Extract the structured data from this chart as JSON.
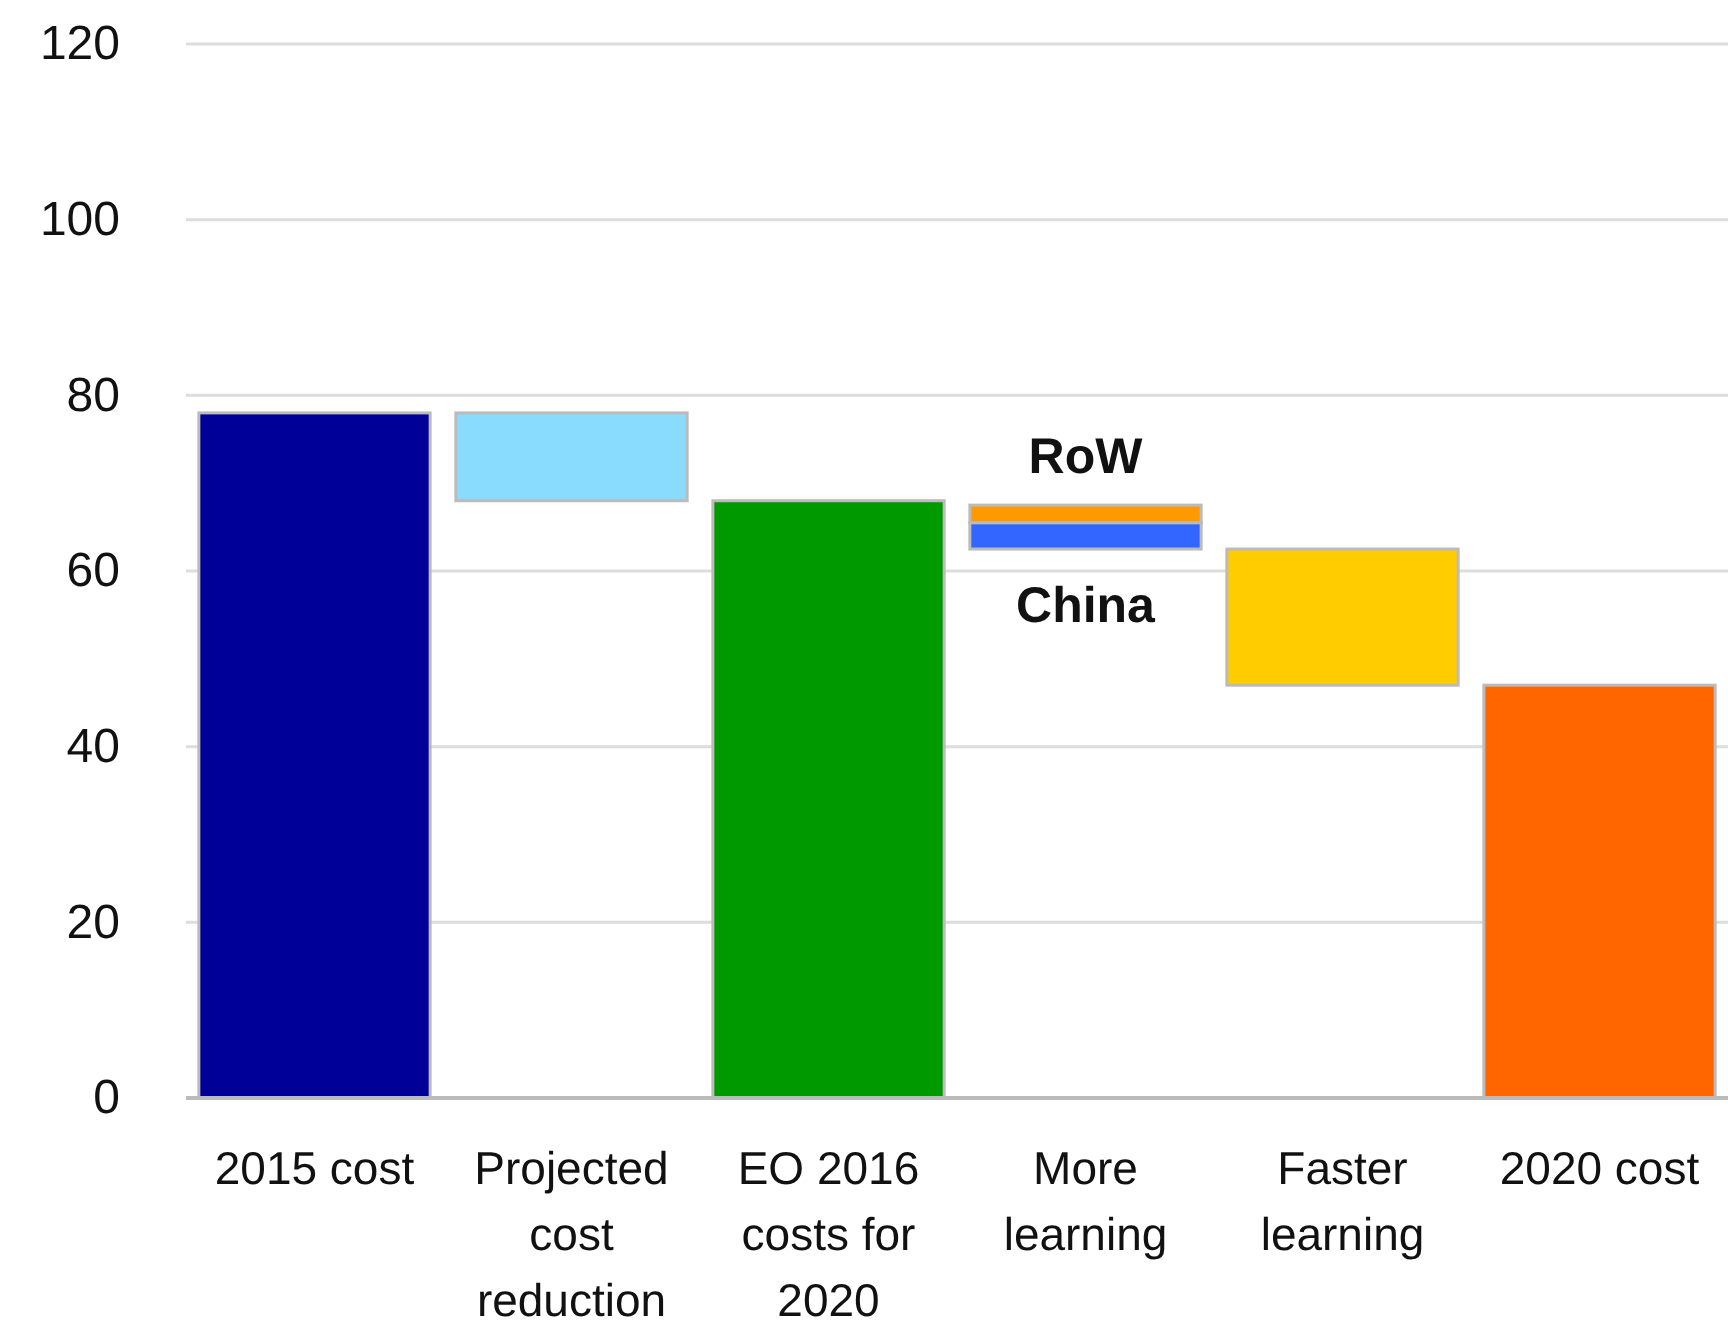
{
  "chart_data": {
    "type": "bar",
    "categories": [
      "2015 cost",
      "Projected cost reduction",
      "EO 2016 costs for 2020",
      "More learning",
      "Faster learning",
      "2020 cost"
    ],
    "series": [
      {
        "colors": [
          "#000099",
          "#8adcff",
          "#009900",
          null,
          "#ffcc00",
          "#ff6600"
        ],
        "values": [
          78,
          10,
          68,
          null,
          15.5,
          47
        ],
        "base": [
          0,
          68,
          0,
          null,
          47,
          0
        ]
      },
      {
        "name": "China",
        "color": "#3366ff",
        "values": [
          null,
          null,
          null,
          3,
          null,
          null
        ],
        "base": [
          null,
          null,
          null,
          62.5,
          null,
          null
        ]
      },
      {
        "name": "RoW",
        "color": "#ff9900",
        "values": [
          null,
          null,
          null,
          2,
          null,
          null
        ]
      }
    ],
    "stacked": true,
    "ylim": [
      0,
      120
    ],
    "yticks": [
      0,
      20,
      40,
      60,
      80,
      100,
      120
    ],
    "grid": "y"
  }
}
